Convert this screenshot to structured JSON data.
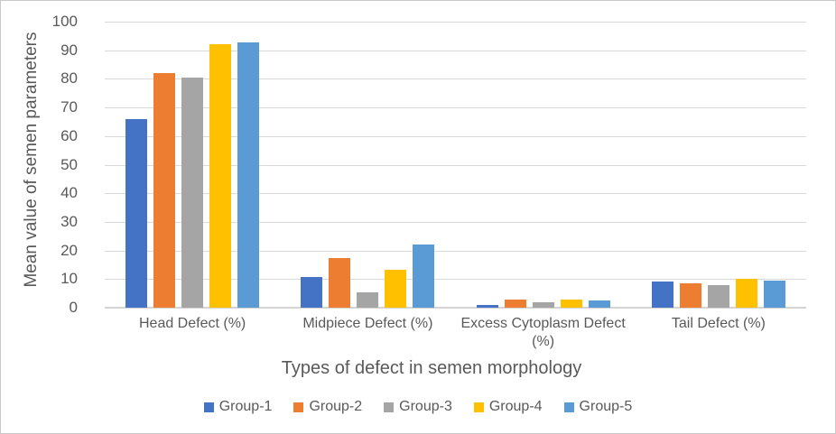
{
  "chart_data": {
    "type": "bar",
    "title": "",
    "xlabel": "Types of defect in semen morphology",
    "ylabel": "Mean value of semen parameters",
    "categories": [
      "Head Defect (%)",
      "Midpiece Defect (%)",
      "Excess Cytoplasm Defect (%)",
      "Tail Defect (%)"
    ],
    "series": [
      {
        "name": "Group-1",
        "color": "#4472C4",
        "values": [
          66,
          10.7,
          0.9,
          9.2
        ]
      },
      {
        "name": "Group-2",
        "color": "#ED7D31",
        "values": [
          82,
          17.3,
          2.8,
          8.6
        ]
      },
      {
        "name": "Group-3",
        "color": "#A5A5A5",
        "values": [
          80.3,
          5.4,
          1.9,
          8
        ]
      },
      {
        "name": "Group-4",
        "color": "#FFC000",
        "values": [
          92,
          13.3,
          3,
          10.1
        ]
      },
      {
        "name": "Group-5",
        "color": "#5B9BD5",
        "values": [
          92.6,
          22.2,
          2.4,
          9.6
        ]
      }
    ],
    "ylim": [
      0,
      100
    ],
    "yticks": [
      0,
      10,
      20,
      30,
      40,
      50,
      60,
      70,
      80,
      90,
      100
    ],
    "grid": true,
    "legend_position": "bottom",
    "gridline_color": "#DADADA",
    "axis_text_color": "#595959"
  }
}
